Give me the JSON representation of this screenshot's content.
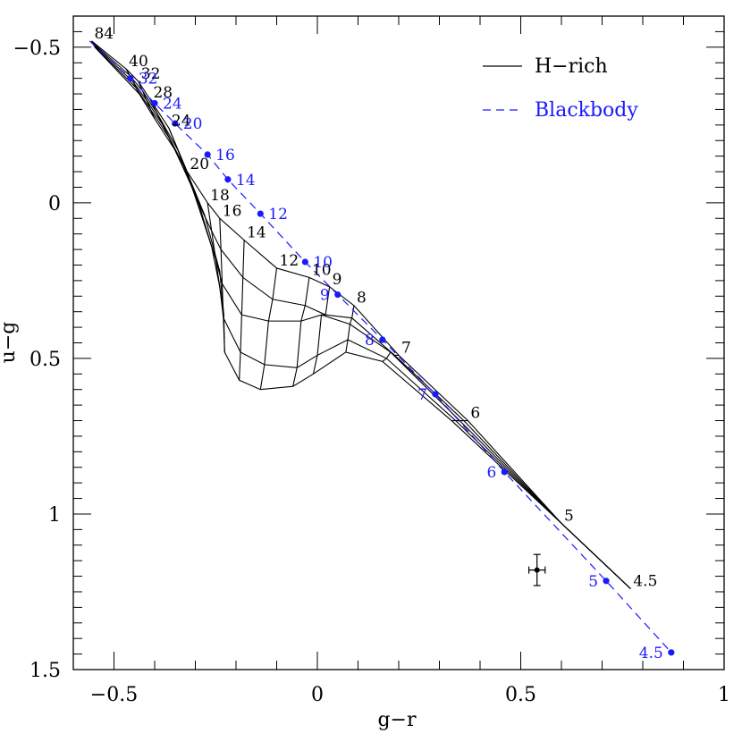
{
  "chart_data": {
    "type": "line",
    "xlabel": "g−r",
    "ylabel": "u−g",
    "xlim": [
      -0.6,
      1.0
    ],
    "ylim": [
      1.5,
      -0.6
    ],
    "y_inverted": true,
    "grid": false,
    "legend_position": "top-right",
    "x_ticks": [
      "−0.5",
      "0",
      "0.5",
      "1"
    ],
    "x_tick_values": [
      -0.5,
      0,
      0.5,
      1
    ],
    "y_ticks": [
      "−0.5",
      "0",
      "0.5",
      "1",
      "1.5"
    ],
    "y_tick_values": [
      -0.5,
      0,
      0.5,
      1,
      1.5
    ],
    "legend": [
      {
        "name": "H−rich",
        "style": "solid",
        "color": "#000000"
      },
      {
        "name": "Blackbody",
        "style": "dashed",
        "color": "#1a1aff"
      }
    ],
    "hrich_temperatures": [
      {
        "label": "84",
        "x": -0.555,
        "y": -0.52
      },
      {
        "label": "40",
        "x": -0.47,
        "y": -0.43
      },
      {
        "label": "32",
        "x": -0.44,
        "y": -0.39
      },
      {
        "label": "28",
        "x": -0.41,
        "y": -0.33
      },
      {
        "label": "24",
        "x": -0.365,
        "y": -0.24
      },
      {
        "label": "20",
        "x": -0.32,
        "y": -0.1
      },
      {
        "label": "18",
        "x": -0.27,
        "y": 0.0
      },
      {
        "label": "16",
        "x": -0.24,
        "y": 0.05
      },
      {
        "label": "14",
        "x": -0.18,
        "y": 0.12
      },
      {
        "label": "12",
        "x": -0.1,
        "y": 0.21
      },
      {
        "label": "10",
        "x": -0.02,
        "y": 0.24
      },
      {
        "label": "9",
        "x": 0.03,
        "y": 0.27
      },
      {
        "label": "8",
        "x": 0.09,
        "y": 0.33
      },
      {
        "label": "7",
        "x": 0.2,
        "y": 0.49
      },
      {
        "label": "6",
        "x": 0.37,
        "y": 0.7
      },
      {
        "label": "5",
        "x": 0.6,
        "y": 1.03
      },
      {
        "label": "4.5",
        "x": 0.77,
        "y": 1.24
      }
    ],
    "hrich_grid_x": [
      [
        -0.555,
        -0.47,
        -0.44,
        -0.41,
        -0.365,
        -0.32,
        -0.27,
        -0.24,
        -0.18,
        -0.1,
        -0.02,
        0.03,
        0.09,
        0.2,
        0.37,
        0.6,
        0.77
      ],
      [
        -0.553,
        -0.462,
        -0.43,
        -0.395,
        -0.343,
        -0.3,
        -0.26,
        -0.237,
        -0.183,
        -0.11,
        -0.03,
        0.02,
        0.085,
        0.19,
        0.36,
        0.6,
        0.77
      ],
      [
        -0.551,
        -0.454,
        -0.42,
        -0.38,
        -0.321,
        -0.28,
        -0.25,
        -0.234,
        -0.186,
        -0.12,
        -0.04,
        0.01,
        0.08,
        0.18,
        0.35,
        0.6,
        0.77
      ],
      [
        -0.549,
        -0.446,
        -0.41,
        -0.365,
        -0.299,
        -0.26,
        -0.24,
        -0.231,
        -0.189,
        -0.13,
        -0.05,
        0.0,
        0.075,
        0.17,
        0.34,
        0.6,
        0.77
      ],
      [
        -0.547,
        -0.438,
        -0.4,
        -0.35,
        -0.277,
        -0.24,
        -0.23,
        -0.228,
        -0.192,
        -0.14,
        -0.06,
        -0.01,
        0.07,
        0.16,
        0.33,
        0.6,
        0.77
      ]
    ],
    "hrich_grid_y": [
      [
        -0.52,
        -0.43,
        -0.39,
        -0.33,
        -0.24,
        -0.1,
        0.0,
        0.05,
        0.12,
        0.21,
        0.24,
        0.27,
        0.33,
        0.49,
        0.7,
        1.03,
        1.24
      ],
      [
        -0.515,
        -0.41,
        -0.36,
        -0.29,
        -0.17,
        -0.02,
        0.09,
        0.15,
        0.24,
        0.31,
        0.33,
        0.36,
        0.37,
        0.49,
        0.7,
        1.03,
        1.24
      ],
      [
        -0.51,
        -0.39,
        -0.33,
        -0.25,
        -0.1,
        0.06,
        0.18,
        0.26,
        0.36,
        0.38,
        0.38,
        0.36,
        0.39,
        0.48,
        0.7,
        1.03,
        1.24
      ],
      [
        -0.505,
        -0.37,
        -0.3,
        -0.21,
        -0.03,
        0.14,
        0.27,
        0.37,
        0.48,
        0.52,
        0.53,
        0.49,
        0.44,
        0.5,
        0.7,
        1.03,
        1.24
      ],
      [
        -0.5,
        -0.35,
        -0.27,
        -0.17,
        0.04,
        0.22,
        0.36,
        0.48,
        0.57,
        0.6,
        0.59,
        0.55,
        0.48,
        0.51,
        0.7,
        1.03,
        1.24
      ]
    ],
    "blackbody": [
      {
        "label": "32",
        "x": -0.46,
        "y": -0.4
      },
      {
        "label": "24",
        "x": -0.4,
        "y": -0.32
      },
      {
        "label": "20",
        "x": -0.35,
        "y": -0.255
      },
      {
        "label": "16",
        "x": -0.27,
        "y": -0.155
      },
      {
        "label": "14",
        "x": -0.22,
        "y": -0.075
      },
      {
        "label": "12",
        "x": -0.14,
        "y": 0.035
      },
      {
        "label": "10",
        "x": -0.03,
        "y": 0.19
      },
      {
        "label": "9",
        "x": 0.05,
        "y": 0.295
      },
      {
        "label": "8",
        "x": 0.16,
        "y": 0.44
      },
      {
        "label": "7",
        "x": 0.29,
        "y": 0.615
      },
      {
        "label": "6",
        "x": 0.46,
        "y": 0.865
      },
      {
        "label": "5",
        "x": 0.71,
        "y": 1.215
      },
      {
        "label": "4.5",
        "x": 0.87,
        "y": 1.445
      }
    ],
    "blackbody_start": {
      "x": -0.56,
      "y": -0.52
    },
    "observed_point": {
      "x": 0.54,
      "y": 1.18,
      "x_err": 0.02,
      "y_err": 0.05
    }
  },
  "colors": {
    "hrich": "#000000",
    "blackbody": "#1a1aff",
    "axes": "#000000"
  }
}
